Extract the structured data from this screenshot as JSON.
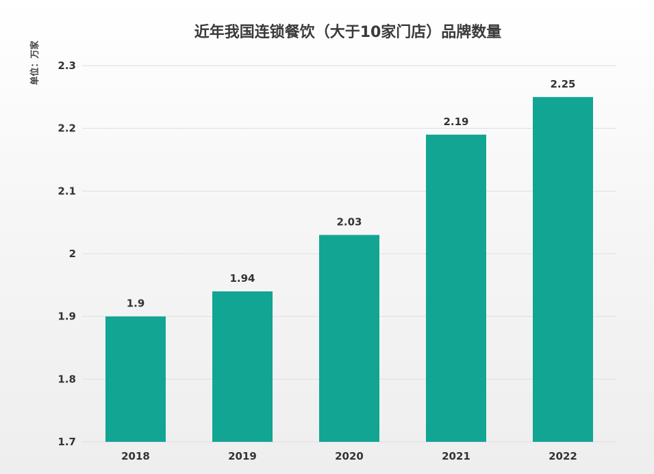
{
  "chart_data": {
    "type": "bar",
    "title": "近年我国连锁餐饮（大于10家门店）品牌数量",
    "unit_label": "单位：万家",
    "categories": [
      "2018",
      "2019",
      "2020",
      "2021",
      "2022"
    ],
    "values": [
      1.9,
      1.94,
      2.03,
      2.19,
      2.25
    ],
    "data_labels": [
      "1.9",
      "1.94",
      "2.03",
      "2.19",
      "2.25"
    ],
    "ylim": [
      1.7,
      2.3
    ],
    "yticks": [
      1.7,
      1.8,
      1.9,
      2.0,
      2.1,
      2.2,
      2.3
    ],
    "ytick_labels": [
      "1.7",
      "1.8",
      "1.9",
      "2",
      "2.1",
      "2.2",
      "2.3"
    ],
    "grid": true,
    "legend": "none",
    "bar_color": "#12a594"
  }
}
